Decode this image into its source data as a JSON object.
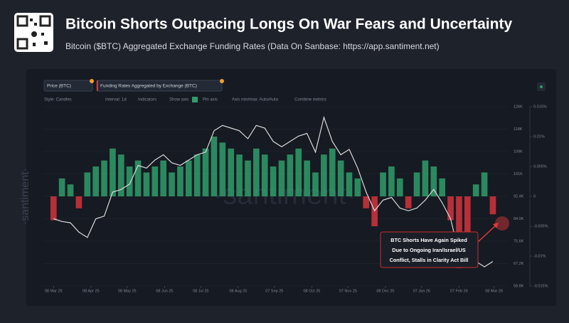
{
  "header": {
    "title": "Bitcoin Shorts Outpacing Longs On War Fears and Uncertainty",
    "subtitle": "Bitcoin ($BTC) Aggregated Exchange Funding Rates (Data On Sanbase: https://app.santiment.net)"
  },
  "toolbar": {
    "chips": [
      "Price (BTC)",
      "Funding Rates Aggregated by Exchange (BTC)"
    ],
    "options": [
      "Style: Candles",
      "Interval: 1d",
      "Indicators",
      "Show axis",
      "Pin axis",
      "Axis min/max: Auto/Auto",
      "Combine metrics"
    ]
  },
  "watermark": "·santiment·",
  "chart_data": {
    "type": "combo",
    "x": [
      "2025-03-08",
      "2025-03-15",
      "2025-03-22",
      "2025-03-29",
      "2025-04-05",
      "2025-04-12",
      "2025-04-19",
      "2025-04-26",
      "2025-05-03",
      "2025-05-10",
      "2025-05-17",
      "2025-05-24",
      "2025-05-31",
      "2025-06-07",
      "2025-06-14",
      "2025-06-21",
      "2025-06-28",
      "2025-07-05",
      "2025-07-12",
      "2025-07-19",
      "2025-07-26",
      "2025-08-02",
      "2025-08-09",
      "2025-08-16",
      "2025-08-23",
      "2025-08-30",
      "2025-09-06",
      "2025-09-13",
      "2025-09-20",
      "2025-09-27",
      "2025-10-04",
      "2025-10-11",
      "2025-10-18",
      "2025-10-25",
      "2025-11-01",
      "2025-11-08",
      "2025-11-15",
      "2025-11-22",
      "2025-11-29",
      "2025-12-06",
      "2025-12-13",
      "2025-12-20",
      "2025-12-27",
      "2026-01-03",
      "2026-01-10",
      "2026-01-17",
      "2026-01-24",
      "2026-01-31",
      "2026-02-07",
      "2026-02-14",
      "2026-02-21",
      "2026-02-28",
      "2026-03-07"
    ],
    "xlim": [
      "2025-02-27",
      "2026-03-20"
    ],
    "xticks": [
      {
        "value": "2025-03-08",
        "label": "08 Mar 25"
      },
      {
        "value": "2025-04-08",
        "label": "08 Apr 25"
      },
      {
        "value": "2025-05-08",
        "label": "08 May 25"
      },
      {
        "value": "2025-06-08",
        "label": "08 Jun 25"
      },
      {
        "value": "2025-07-08",
        "label": "08 Jul 25"
      },
      {
        "value": "2025-08-08",
        "label": "08 Aug 25"
      },
      {
        "value": "2025-09-07",
        "label": "07 Sep 25"
      },
      {
        "value": "2025-10-08",
        "label": "08 Oct 25"
      },
      {
        "value": "2025-11-07",
        "label": "07 Nov 25"
      },
      {
        "value": "2025-12-08",
        "label": "08 Dec 25"
      },
      {
        "value": "2026-01-07",
        "label": "07 Jan 26"
      },
      {
        "value": "2026-02-07",
        "label": "07 Feb 26"
      },
      {
        "value": "2026-03-08",
        "label": "08 Mar 26"
      }
    ],
    "ylim": [
      58800,
      126000
    ],
    "yticks": [
      {
        "value": 58800,
        "label": "58.8K"
      },
      {
        "value": 67200,
        "label": "67.2K"
      },
      {
        "value": 75600,
        "label": "75.6K"
      },
      {
        "value": 84000,
        "label": "84.0K"
      },
      {
        "value": 92400,
        "label": "92.4K"
      },
      {
        "value": 100800,
        "label": "101K"
      },
      {
        "value": 109200,
        "label": "109K"
      },
      {
        "value": 117600,
        "label": "118K"
      },
      {
        "value": 126000,
        "label": "126K"
      }
    ],
    "y2lim": [
      -0.015,
      0.015
    ],
    "y2ticks": [
      {
        "value": -0.015,
        "label": "-0.015%"
      },
      {
        "value": -0.01,
        "label": "-0.01%"
      },
      {
        "value": -0.005,
        "label": "-0.005%"
      },
      0,
      {
        "value": 0.005,
        "label": "0.005%"
      },
      {
        "value": 0.01,
        "label": "0.01%"
      },
      {
        "value": 0.015,
        "label": "0.015%"
      }
    ],
    "series": [
      {
        "name": "Funding Rates Aggregated by Exchange (BTC)",
        "type": "bar",
        "axis": "y2",
        "color": "#2f9e6b",
        "negative_color": "#d3343c",
        "values": [
          -0.004,
          0.003,
          0.002,
          -0.002,
          0.004,
          0.005,
          0.006,
          0.008,
          0.007,
          0.005,
          0.006,
          0.004,
          0.005,
          0.006,
          0.004,
          0.005,
          0.006,
          0.007,
          0.008,
          0.01,
          0.009,
          0.008,
          0.007,
          0.006,
          0.008,
          0.007,
          0.005,
          0.006,
          0.007,
          0.008,
          0.006,
          0.004,
          0.007,
          0.008,
          0.006,
          0.004,
          0.003,
          -0.002,
          -0.005,
          0.004,
          0.005,
          0.003,
          -0.002,
          0.004,
          0.006,
          0.005,
          0.003,
          -0.004,
          -0.012,
          -0.008,
          0.002,
          0.004,
          -0.003
        ]
      },
      {
        "name": "Price (BTC)",
        "type": "line",
        "color": "#d9d9d9",
        "values": [
          84000,
          83000,
          82500,
          79000,
          77000,
          84000,
          85000,
          94000,
          95000,
          97000,
          104000,
          103000,
          106000,
          108000,
          105000,
          104000,
          106000,
          108000,
          109000,
          117000,
          119000,
          118000,
          117000,
          114000,
          119000,
          118000,
          113000,
          111000,
          113000,
          115000,
          116000,
          109000,
          122000,
          113000,
          108000,
          110000,
          103000,
          94000,
          87000,
          91000,
          92000,
          88000,
          87000,
          88000,
          91000,
          95000,
          90000,
          84000,
          71000,
          69000,
          68000,
          66000,
          68000
        ]
      }
    ],
    "annotation": [
      "BTC Shorts Have Again Spiked",
      "Due to Ongoing Iran/Israel/US",
      "Conflict, Stalls in Clarity Act Bill"
    ]
  }
}
